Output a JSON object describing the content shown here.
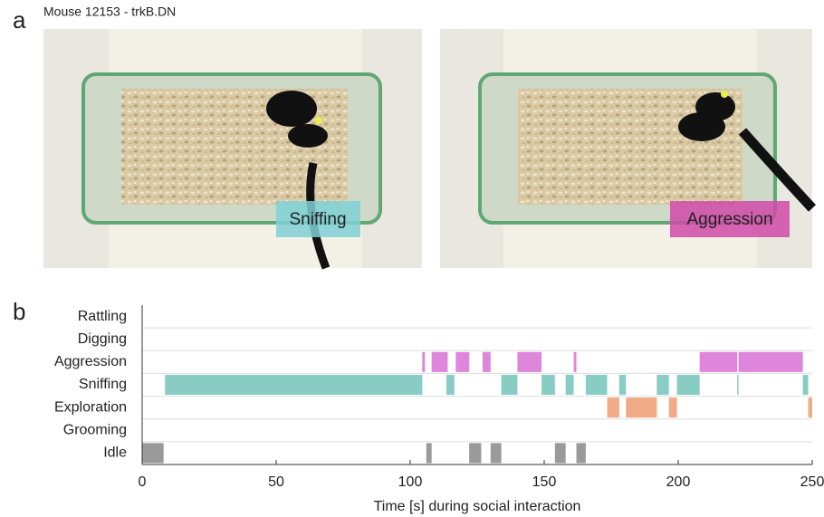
{
  "panel_a": {
    "label": "a",
    "title": "Mouse 12153 - trkB.DN",
    "frames": [
      {
        "label": "Sniffing"
      },
      {
        "label": "Aggression"
      }
    ]
  },
  "panel_b": {
    "label": "b"
  },
  "chart_data": {
    "type": "timeline",
    "categories": [
      "Rattling",
      "Digging",
      "Aggression",
      "Sniffing",
      "Exploration",
      "Grooming",
      "Idle"
    ],
    "colors": [
      null,
      null,
      "#de86db",
      "#88ccc4",
      "#f0aa86",
      null,
      "#9a9a9a"
    ],
    "intervals": [
      [],
      [],
      [
        [
          104.5,
          105.5
        ],
        [
          108,
          114
        ],
        [
          117,
          122
        ],
        [
          127,
          130
        ],
        [
          140,
          149
        ],
        [
          161,
          162
        ],
        [
          208,
          222
        ],
        [
          222.5,
          246.5
        ]
      ],
      [
        [
          8.5,
          104.5
        ],
        [
          113.5,
          116.5
        ],
        [
          134,
          140
        ],
        [
          149,
          154
        ],
        [
          158,
          161
        ],
        [
          165.5,
          173.5
        ],
        [
          178,
          180.5
        ],
        [
          192,
          196.5
        ],
        [
          199.5,
          208
        ],
        [
          222,
          222.5
        ],
        [
          246.5,
          248.5
        ]
      ],
      [
        [
          173.5,
          178
        ],
        [
          180.5,
          192
        ],
        [
          196.5,
          199.5
        ],
        [
          248.5,
          250
        ]
      ],
      [],
      [
        [
          0,
          8
        ],
        [
          106,
          108
        ],
        [
          122,
          126.5
        ],
        [
          130,
          134
        ],
        [
          154,
          158
        ],
        [
          162,
          165.5
        ]
      ]
    ],
    "xlim": [
      0,
      250
    ],
    "xticks": [
      0,
      50,
      100,
      150,
      200,
      250
    ],
    "xlabel": "Time [s] during social interaction",
    "grid": true
  }
}
